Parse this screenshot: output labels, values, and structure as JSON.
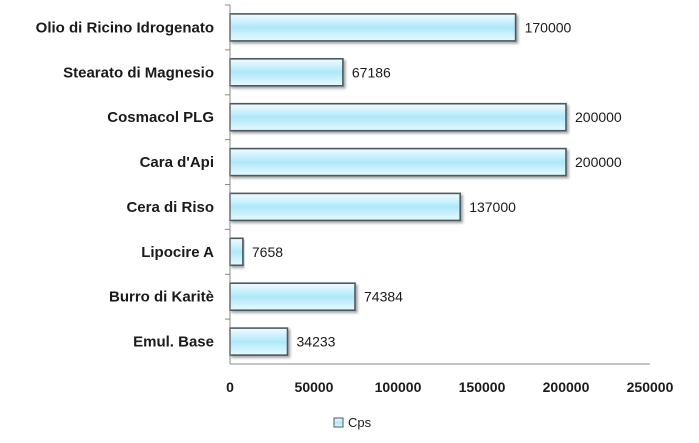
{
  "chart_data": {
    "type": "bar",
    "orientation": "horizontal",
    "categories": [
      "Olio di Ricino Idrogenato",
      "Stearato di Magnesio",
      "Cosmacol PLG",
      "Cara d'Api",
      "Cera di Riso",
      "Lipocire A",
      "Burro di Karitè",
      "Emul. Base"
    ],
    "series": [
      {
        "name": "Cps",
        "values": [
          170000,
          67186,
          200000,
          200000,
          137000,
          7658,
          74384,
          34233
        ]
      }
    ],
    "data_labels": [
      "170000",
      "67186",
      "200000",
      "200000",
      "137000",
      "7658",
      "74384",
      "34233"
    ],
    "x_ticks": [
      "0",
      "50000",
      "100000",
      "150000",
      "200000",
      "250000"
    ],
    "xlim": [
      0,
      250000
    ],
    "title": "",
    "xlabel": "",
    "ylabel": "",
    "grid": false,
    "legend_position": "bottom",
    "colors": {
      "bar_fill_center": "#aee8f8",
      "bar_fill_edge": "#f2fcff",
      "bar_stroke": "#4a5a64",
      "axis": "#888888"
    }
  }
}
